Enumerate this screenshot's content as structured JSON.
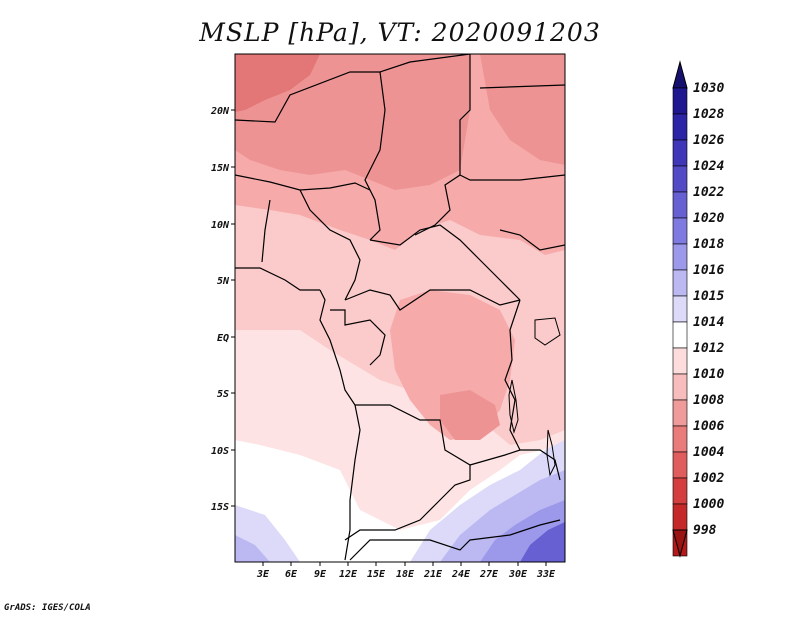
{
  "title": "MSLP [hPa], VT: 2020091203",
  "credit": "GrADS: IGES/COLA",
  "lat_labels": [
    "20N",
    "15N",
    "10N",
    "5N",
    "EQ",
    "5S",
    "10S",
    "15S"
  ],
  "lon_labels": [
    "3E",
    "6E",
    "9E",
    "12E",
    "15E",
    "18E",
    "21E",
    "24E",
    "27E",
    "30E",
    "33E"
  ],
  "colorbar": {
    "levels": [
      "1030",
      "1028",
      "1026",
      "1024",
      "1022",
      "1020",
      "1018",
      "1016",
      "1015",
      "1014",
      "1012",
      "1010",
      "1008",
      "1006",
      "1004",
      "1002",
      "1000",
      "998"
    ],
    "colors": [
      "#1f178f",
      "#2b24a6",
      "#3f36b8",
      "#534bc6",
      "#6660d3",
      "#7f7ae0",
      "#9c98ea",
      "#bcb9f2",
      "#dcdaf8",
      "#ffffff",
      "#fcdcdc",
      "#f7bcbc",
      "#ef9b9b",
      "#e97b7b",
      "#e05d5d",
      "#d43e3e",
      "#c42828",
      "#b31a1a"
    ],
    "top_color": "#16106e",
    "bottom_color": "#9a1414"
  },
  "map_colors": {
    "white": "#ffffff",
    "pink_light": "#fde3e3",
    "pink": "#fbcaca",
    "salmon": "#f6aaaa",
    "rose": "#ee9393",
    "red": "#e37676",
    "lav_light": "#dcdaf8",
    "lav": "#bcb9f2",
    "purple": "#9c98ea",
    "blue": "#6660d3"
  }
}
